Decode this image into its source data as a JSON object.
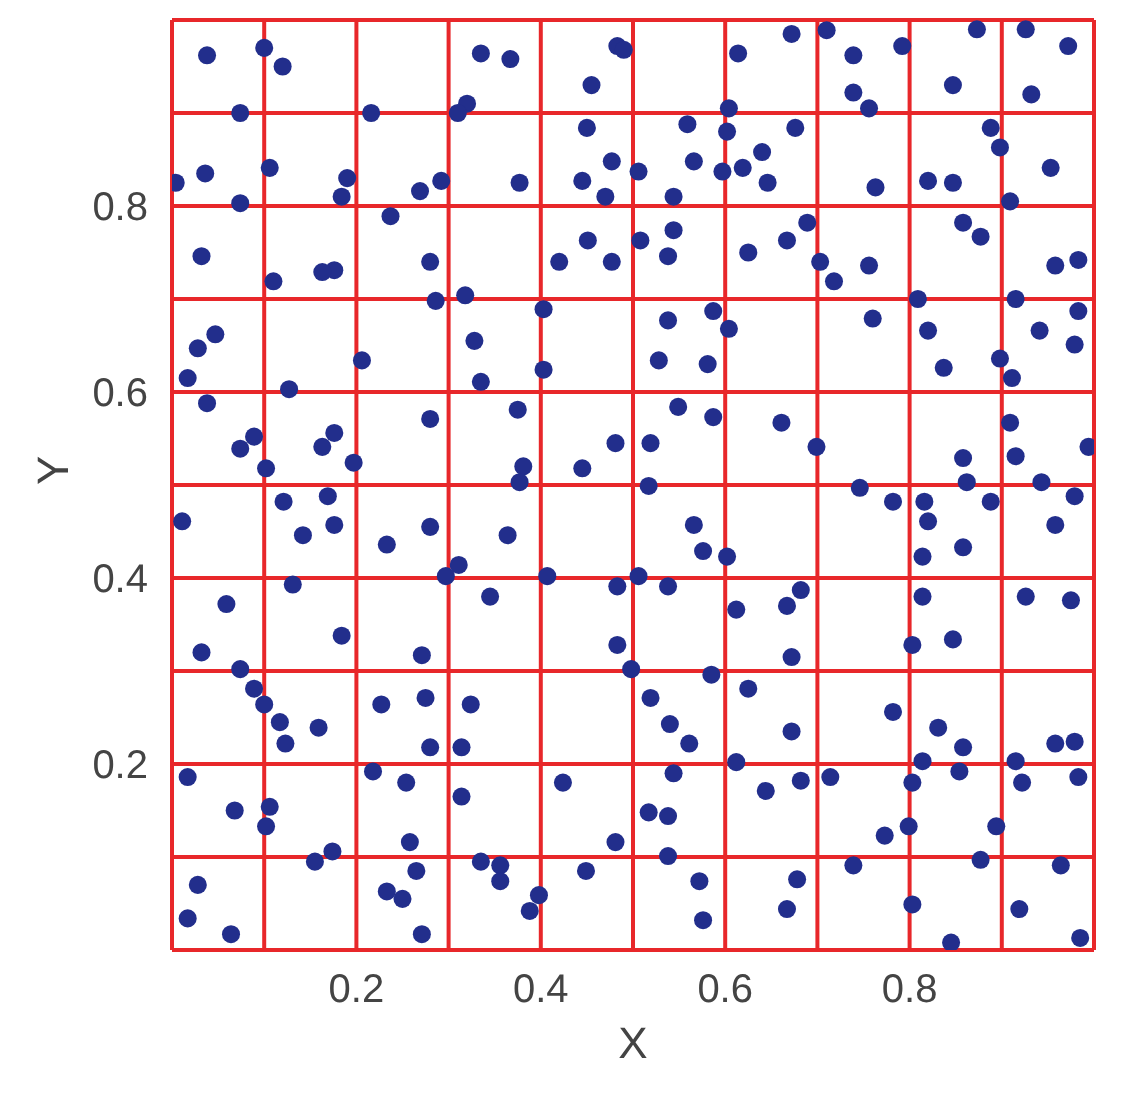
{
  "chart_data": {
    "type": "scatter",
    "xlabel": "X",
    "ylabel": "Y",
    "xlim": [
      0,
      1
    ],
    "ylim": [
      0,
      1
    ],
    "xticks": [
      {
        "value": 0,
        "label": null
      },
      {
        "value": 0.1,
        "label": null
      },
      0.2,
      {
        "value": 0.3,
        "label": null
      },
      0.4,
      {
        "value": 0.5,
        "label": null
      },
      0.6,
      {
        "value": 0.7,
        "label": null
      },
      0.8,
      {
        "value": 0.9,
        "label": null
      },
      {
        "value": 1,
        "label": null
      }
    ],
    "yticks": [
      {
        "value": 0,
        "label": null
      },
      {
        "value": 0.1,
        "label": null
      },
      0.2,
      {
        "value": 0.3,
        "label": null
      },
      0.4,
      {
        "value": 0.5,
        "label": null
      },
      0.6,
      {
        "value": 0.7,
        "label": null
      },
      0.8,
      {
        "value": 0.9,
        "label": null
      },
      {
        "value": 1,
        "label": null
      }
    ],
    "grid": true,
    "marker": "circle",
    "legend": false,
    "series": [
      {
        "color": "#222e8c",
        "x": [
          0.038,
          0.1,
          0.12,
          0.074,
          0.216,
          0.335,
          0.367,
          0.32,
          0.31,
          0.483,
          0.455,
          0.45,
          0.477,
          0.004,
          0.036,
          0.074,
          0.106,
          0.19,
          0.184,
          0.237,
          0.269,
          0.292,
          0.377,
          0.445,
          0.47,
          0.032,
          0.11,
          0.176,
          0.163,
          0.28,
          0.286,
          0.318,
          0.42,
          0.451,
          0.477,
          0.403,
          0.047,
          0.028,
          0.017,
          0.038,
          0.127,
          0.206,
          0.328,
          0.335,
          0.403,
          0.375,
          0.28,
          0.074,
          0.089,
          0.163,
          0.176,
          0.197,
          0.102,
          0.381,
          0.445,
          0.481,
          0.49,
          0.614,
          0.672,
          0.71,
          0.739,
          0.792,
          0.873,
          0.926,
          0.972,
          0.739,
          0.756,
          0.847,
          0.932,
          0.604,
          0.559,
          0.602,
          0.676,
          0.506,
          0.566,
          0.597,
          0.64,
          0.646,
          0.619,
          0.763,
          0.82,
          0.847,
          0.888,
          0.898,
          0.953,
          0.909,
          0.544,
          0.508,
          0.544,
          0.538,
          0.625,
          0.667,
          0.689,
          0.703,
          0.718,
          0.756,
          0.858,
          0.877,
          0.958,
          0.983,
          0.538,
          0.587,
          0.604,
          0.528,
          0.581,
          0.76,
          0.809,
          0.82,
          0.837,
          0.898,
          0.911,
          0.915,
          0.941,
          0.979,
          0.983,
          0.549,
          0.587,
          0.519,
          0.661,
          0.699,
          0.858,
          0.909,
          0.915,
          0.994,
          0.011,
          0.121,
          0.169,
          0.142,
          0.176,
          0.233,
          0.28,
          0.364,
          0.377,
          0.311,
          0.297,
          0.407,
          0.483,
          0.483,
          0.059,
          0.131,
          0.184,
          0.032,
          0.271,
          0.345,
          0.074,
          0.089,
          0.1,
          0.117,
          0.123,
          0.159,
          0.227,
          0.275,
          0.324,
          0.28,
          0.314,
          0.017,
          0.068,
          0.106,
          0.102,
          0.218,
          0.254,
          0.314,
          0.424,
          0.174,
          0.155,
          0.258,
          0.265,
          0.233,
          0.25,
          0.335,
          0.356,
          0.356,
          0.398,
          0.388,
          0.449,
          0.481,
          0.028,
          0.017,
          0.064,
          0.271,
          0.517,
          0.566,
          0.576,
          0.602,
          0.746,
          0.782,
          0.816,
          0.82,
          0.862,
          0.888,
          0.858,
          0.943,
          0.979,
          0.958,
          0.814,
          0.506,
          0.538,
          0.814,
          0.612,
          0.682,
          0.667,
          0.926,
          0.975,
          0.803,
          0.847,
          0.672,
          0.498,
          0.585,
          0.625,
          0.519,
          0.782,
          0.831,
          0.54,
          0.561,
          0.672,
          0.612,
          0.858,
          0.854,
          0.814,
          0.915,
          0.922,
          0.958,
          0.979,
          0.983,
          0.544,
          0.644,
          0.682,
          0.714,
          0.803,
          0.517,
          0.538,
          0.773,
          0.799,
          0.894,
          0.538,
          0.877,
          0.964,
          0.572,
          0.678,
          0.739,
          0.576,
          0.667,
          0.803,
          0.919,
          0.985,
          0.845
        ],
        "values": [
          0.962,
          0.97,
          0.95,
          0.9,
          0.9,
          0.964,
          0.958,
          0.91,
          0.9,
          0.972,
          0.93,
          0.884,
          0.848,
          0.825,
          0.835,
          0.803,
          0.841,
          0.83,
          0.81,
          0.789,
          0.816,
          0.827,
          0.825,
          0.827,
          0.81,
          0.746,
          0.719,
          0.731,
          0.729,
          0.74,
          0.698,
          0.704,
          0.74,
          0.763,
          0.74,
          0.689,
          0.662,
          0.647,
          0.615,
          0.588,
          0.603,
          0.634,
          0.655,
          0.611,
          0.624,
          0.581,
          0.571,
          0.539,
          0.552,
          0.541,
          0.556,
          0.524,
          0.518,
          0.52,
          0.518,
          0.545,
          0.968,
          0.964,
          0.985,
          0.989,
          0.962,
          0.972,
          0.99,
          0.99,
          0.972,
          0.922,
          0.905,
          0.93,
          0.92,
          0.905,
          0.888,
          0.88,
          0.884,
          0.837,
          0.848,
          0.837,
          0.858,
          0.825,
          0.841,
          0.82,
          0.827,
          0.825,
          0.884,
          0.863,
          0.841,
          0.805,
          0.81,
          0.763,
          0.774,
          0.746,
          0.75,
          0.763,
          0.782,
          0.74,
          0.719,
          0.736,
          0.782,
          0.767,
          0.736,
          0.742,
          0.677,
          0.687,
          0.668,
          0.634,
          0.63,
          0.679,
          0.7,
          0.666,
          0.626,
          0.636,
          0.615,
          0.7,
          0.666,
          0.651,
          0.687,
          0.584,
          0.573,
          0.545,
          0.567,
          0.541,
          0.529,
          0.567,
          0.531,
          0.541,
          0.461,
          0.482,
          0.488,
          0.446,
          0.457,
          0.436,
          0.455,
          0.446,
          0.503,
          0.414,
          0.402,
          0.402,
          0.391,
          0.328,
          0.372,
          0.393,
          0.338,
          0.32,
          0.317,
          0.38,
          0.302,
          0.281,
          0.264,
          0.245,
          0.222,
          0.239,
          0.264,
          0.271,
          0.264,
          0.218,
          0.218,
          0.186,
          0.15,
          0.154,
          0.133,
          0.192,
          0.18,
          0.165,
          0.18,
          0.106,
          0.095,
          0.116,
          0.085,
          0.063,
          0.055,
          0.095,
          0.091,
          0.074,
          0.059,
          0.042,
          0.085,
          0.116,
          0.07,
          0.034,
          0.017,
          0.017,
          0.499,
          0.457,
          0.429,
          0.423,
          0.497,
          0.482,
          0.482,
          0.461,
          0.503,
          0.482,
          0.433,
          0.503,
          0.488,
          0.457,
          0.423,
          0.402,
          0.391,
          0.38,
          0.366,
          0.387,
          0.37,
          0.38,
          0.376,
          0.328,
          0.334,
          0.315,
          0.302,
          0.296,
          0.281,
          0.271,
          0.256,
          0.239,
          0.243,
          0.222,
          0.235,
          0.202,
          0.218,
          0.192,
          0.203,
          0.203,
          0.18,
          0.222,
          0.224,
          0.186,
          0.19,
          0.171,
          0.182,
          0.186,
          0.18,
          0.148,
          0.144,
          0.123,
          0.133,
          0.133,
          0.101,
          0.097,
          0.091,
          0.074,
          0.076,
          0.091,
          0.032,
          0.044,
          0.049,
          0.044,
          0.013,
          0.008
        ]
      }
    ]
  }
}
